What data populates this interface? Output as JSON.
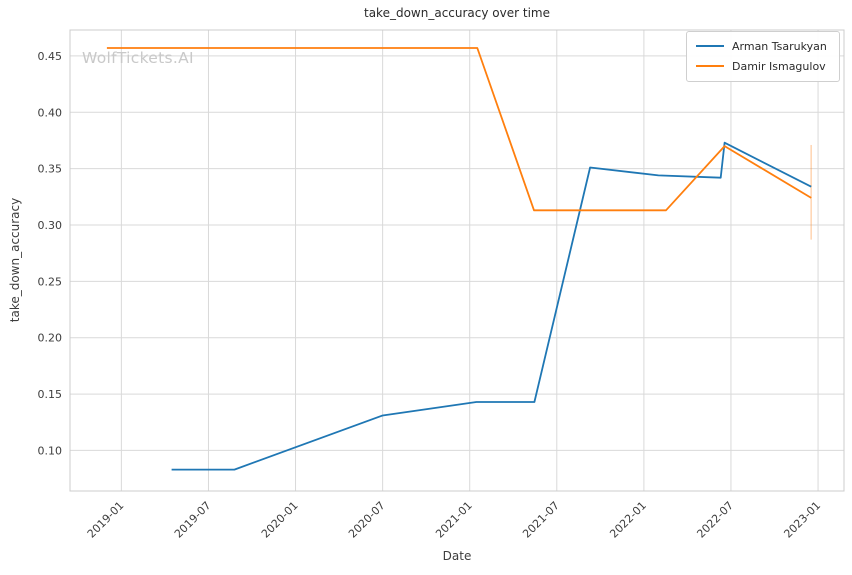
{
  "watermark_text": "WolfTickets.AI",
  "style": {
    "grid_color": "#d9d9d9",
    "plot_border_color": "#cccccc",
    "tick_text_color": "#3d3d3d",
    "title_color": "#2b2b2b",
    "watermark_color": "#c9c9c9",
    "background": "#ffffff"
  },
  "chart_data": {
    "type": "line",
    "title": "take_down_accuracy over time",
    "xlabel": "Date",
    "ylabel": "take_down_accuracy",
    "grid": true,
    "legend_position": "upper right",
    "x_ticks": [
      "2019-01",
      "2019-07",
      "2020-01",
      "2020-07",
      "2021-01",
      "2021-07",
      "2022-01",
      "2022-07",
      "2023-01"
    ],
    "y_ticks": [
      0.1,
      0.15,
      0.2,
      0.25,
      0.3,
      0.35,
      0.4,
      0.45
    ],
    "xlim": [
      "2018-09-15",
      "2023-02-25"
    ],
    "ylim": [
      0.064,
      0.473
    ],
    "series": [
      {
        "name": "Arman Tsarukyan",
        "color": "#1f77b4",
        "points": [
          {
            "date": "2019-04-15",
            "value": 0.083
          },
          {
            "date": "2019-08-25",
            "value": 0.083
          },
          {
            "date": "2020-07-01",
            "value": 0.131
          },
          {
            "date": "2021-01-15",
            "value": 0.143
          },
          {
            "date": "2021-05-15",
            "value": 0.143
          },
          {
            "date": "2021-09-10",
            "value": 0.351
          },
          {
            "date": "2022-02-01",
            "value": 0.344
          },
          {
            "date": "2022-06-10",
            "value": 0.342
          },
          {
            "date": "2022-06-18",
            "value": 0.373
          },
          {
            "date": "2022-12-17",
            "value": 0.334
          }
        ]
      },
      {
        "name": "Damir Ismagulov",
        "color": "#ff7f0e",
        "points": [
          {
            "date": "2018-12-01",
            "value": 0.457
          },
          {
            "date": "2021-01-17",
            "value": 0.457
          },
          {
            "date": "2021-05-14",
            "value": 0.313
          },
          {
            "date": "2022-02-17",
            "value": 0.313
          },
          {
            "date": "2022-06-18",
            "value": 0.37
          },
          {
            "date": "2022-12-17",
            "value": 0.324
          }
        ],
        "error_bar": {
          "date": "2022-12-17",
          "y_min": 0.287,
          "y_max": 0.371
        }
      }
    ]
  }
}
